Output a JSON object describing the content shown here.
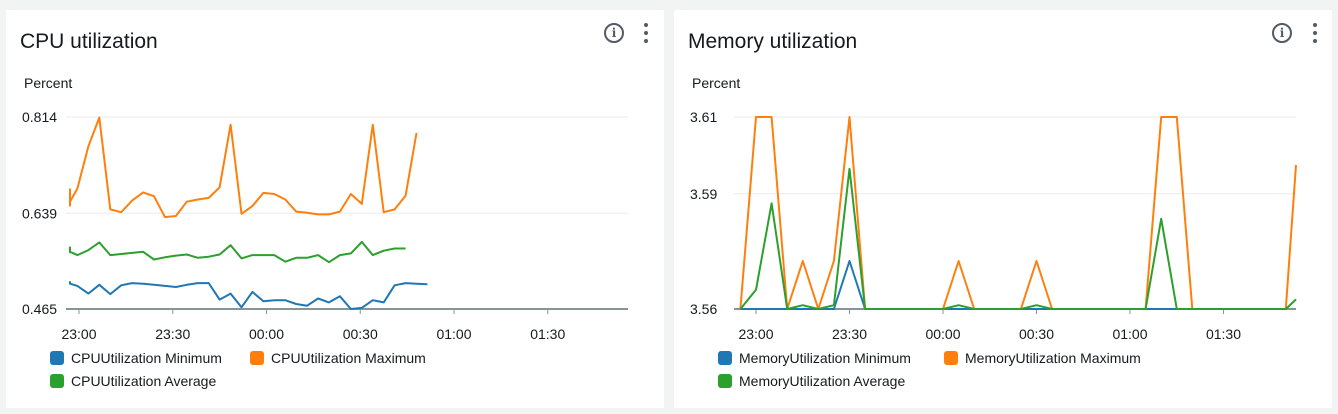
{
  "panels": [
    {
      "title": "CPU utilization",
      "chart_data": {
        "type": "line",
        "ylabel": "Percent",
        "ylim": [
          0.465,
          0.814
        ],
        "yticks": [
          "0.814",
          "0.639",
          "0.465"
        ],
        "xticks": [
          "23:00",
          "23:30",
          "00:00",
          "00:30",
          "01:00",
          "01:30"
        ],
        "x_start_minutes": -18,
        "x_step_minutes": 3.5,
        "tick_minutes": [
          0,
          30,
          60,
          90,
          120,
          150
        ],
        "grid": true,
        "legend_position": "bottom-left",
        "series": [
          {
            "name": "CPUUtilization Minimum",
            "color": "#1f77b4",
            "values": [
              0.51,
              0.514,
              0.513,
              0.514,
              0.511,
              0.507,
              0.493,
              0.509,
              0.492,
              0.508,
              0.512,
              0.511,
              0.509,
              0.507,
              0.505,
              0.509,
              0.512,
              0.512,
              0.482,
              0.493,
              0.468,
              0.496,
              0.479,
              0.481,
              0.481,
              0.474,
              0.471,
              0.484,
              0.477,
              0.488,
              0.465,
              0.467,
              0.481,
              0.477,
              0.508,
              0.512,
              0.511,
              0.51
            ]
          },
          {
            "name": "CPUUtilization Maximum",
            "color": "#ff7f0e",
            "values": [
              0.684,
              0.665,
              0.653,
              0.653,
              0.66,
              0.684,
              0.761,
              0.813,
              0.646,
              0.641,
              0.662,
              0.677,
              0.67,
              0.632,
              0.634,
              0.66,
              0.664,
              0.667,
              0.686,
              0.8,
              0.638,
              0.652,
              0.676,
              0.674,
              0.664,
              0.642,
              0.64,
              0.637,
              0.637,
              0.642,
              0.674,
              0.656,
              0.8,
              0.641,
              0.646,
              0.671,
              0.785
            ]
          },
          {
            "name": "CPUUtilization Average",
            "color": "#2ca02c",
            "values": [
              0.569,
              0.577,
              0.568,
              0.573,
              0.569,
              0.563,
              0.572,
              0.586,
              0.563,
              0.565,
              0.567,
              0.569,
              0.555,
              0.559,
              0.562,
              0.564,
              0.558,
              0.56,
              0.564,
              0.581,
              0.557,
              0.563,
              0.563,
              0.563,
              0.551,
              0.558,
              0.558,
              0.563,
              0.55,
              0.563,
              0.566,
              0.587,
              0.563,
              0.571,
              0.575,
              0.575
            ]
          }
        ]
      }
    },
    {
      "title": "Memory utilization",
      "chart_data": {
        "type": "line",
        "ylabel": "Percent",
        "ylim": [
          3.56,
          3.61
        ],
        "yticks": [
          "3.61",
          "3.59",
          "3.56"
        ],
        "xticks": [
          "23:00",
          "23:30",
          "00:00",
          "00:30",
          "01:00",
          "01:30"
        ],
        "x_start_minutes": -5,
        "x_step_minutes": 5,
        "tick_minutes": [
          0,
          30,
          60,
          90,
          120,
          150
        ],
        "grid": true,
        "legend_position": "bottom-left",
        "series": [
          {
            "name": "MemoryUtilization Minimum",
            "color": "#1f77b4",
            "values": [
              3.56,
              3.56,
              3.56,
              3.56,
              3.56,
              3.56,
              3.56,
              3.5725,
              3.56,
              3.56,
              3.56,
              3.56,
              3.56,
              3.56,
              3.56,
              3.56,
              3.56,
              3.56,
              3.56,
              3.56,
              3.56,
              3.56,
              3.56,
              3.56,
              3.56,
              3.56,
              3.56,
              3.56,
              3.56,
              3.56,
              3.56,
              3.56,
              3.56
            ]
          },
          {
            "name": "MemoryUtilization Maximum",
            "color": "#ff7f0e",
            "values": [
              3.56,
              3.61,
              3.61,
              3.56,
              3.5725,
              3.56,
              3.5725,
              3.61,
              3.56,
              3.56,
              3.56,
              3.56,
              3.56,
              3.56,
              3.5725,
              3.56,
              3.56,
              3.56,
              3.56,
              3.5725,
              3.56,
              3.56,
              3.56,
              3.56,
              3.56,
              3.56,
              3.56,
              3.61,
              3.61,
              3.56,
              3.56,
              3.56,
              3.56,
              3.56,
              3.56,
              3.56,
              3.5975
            ]
          },
          {
            "name": "MemoryUtilization Average",
            "color": "#2ca02c",
            "values": [
              3.56,
              3.565,
              3.5875,
              3.56,
              3.561,
              3.56,
              3.561,
              3.5965,
              3.56,
              3.56,
              3.56,
              3.56,
              3.56,
              3.56,
              3.561,
              3.56,
              3.56,
              3.56,
              3.56,
              3.561,
              3.56,
              3.56,
              3.56,
              3.56,
              3.56,
              3.56,
              3.56,
              3.5835,
              3.56,
              3.56,
              3.56,
              3.56,
              3.56,
              3.56,
              3.56,
              3.56,
              3.5625
            ]
          }
        ]
      }
    }
  ]
}
